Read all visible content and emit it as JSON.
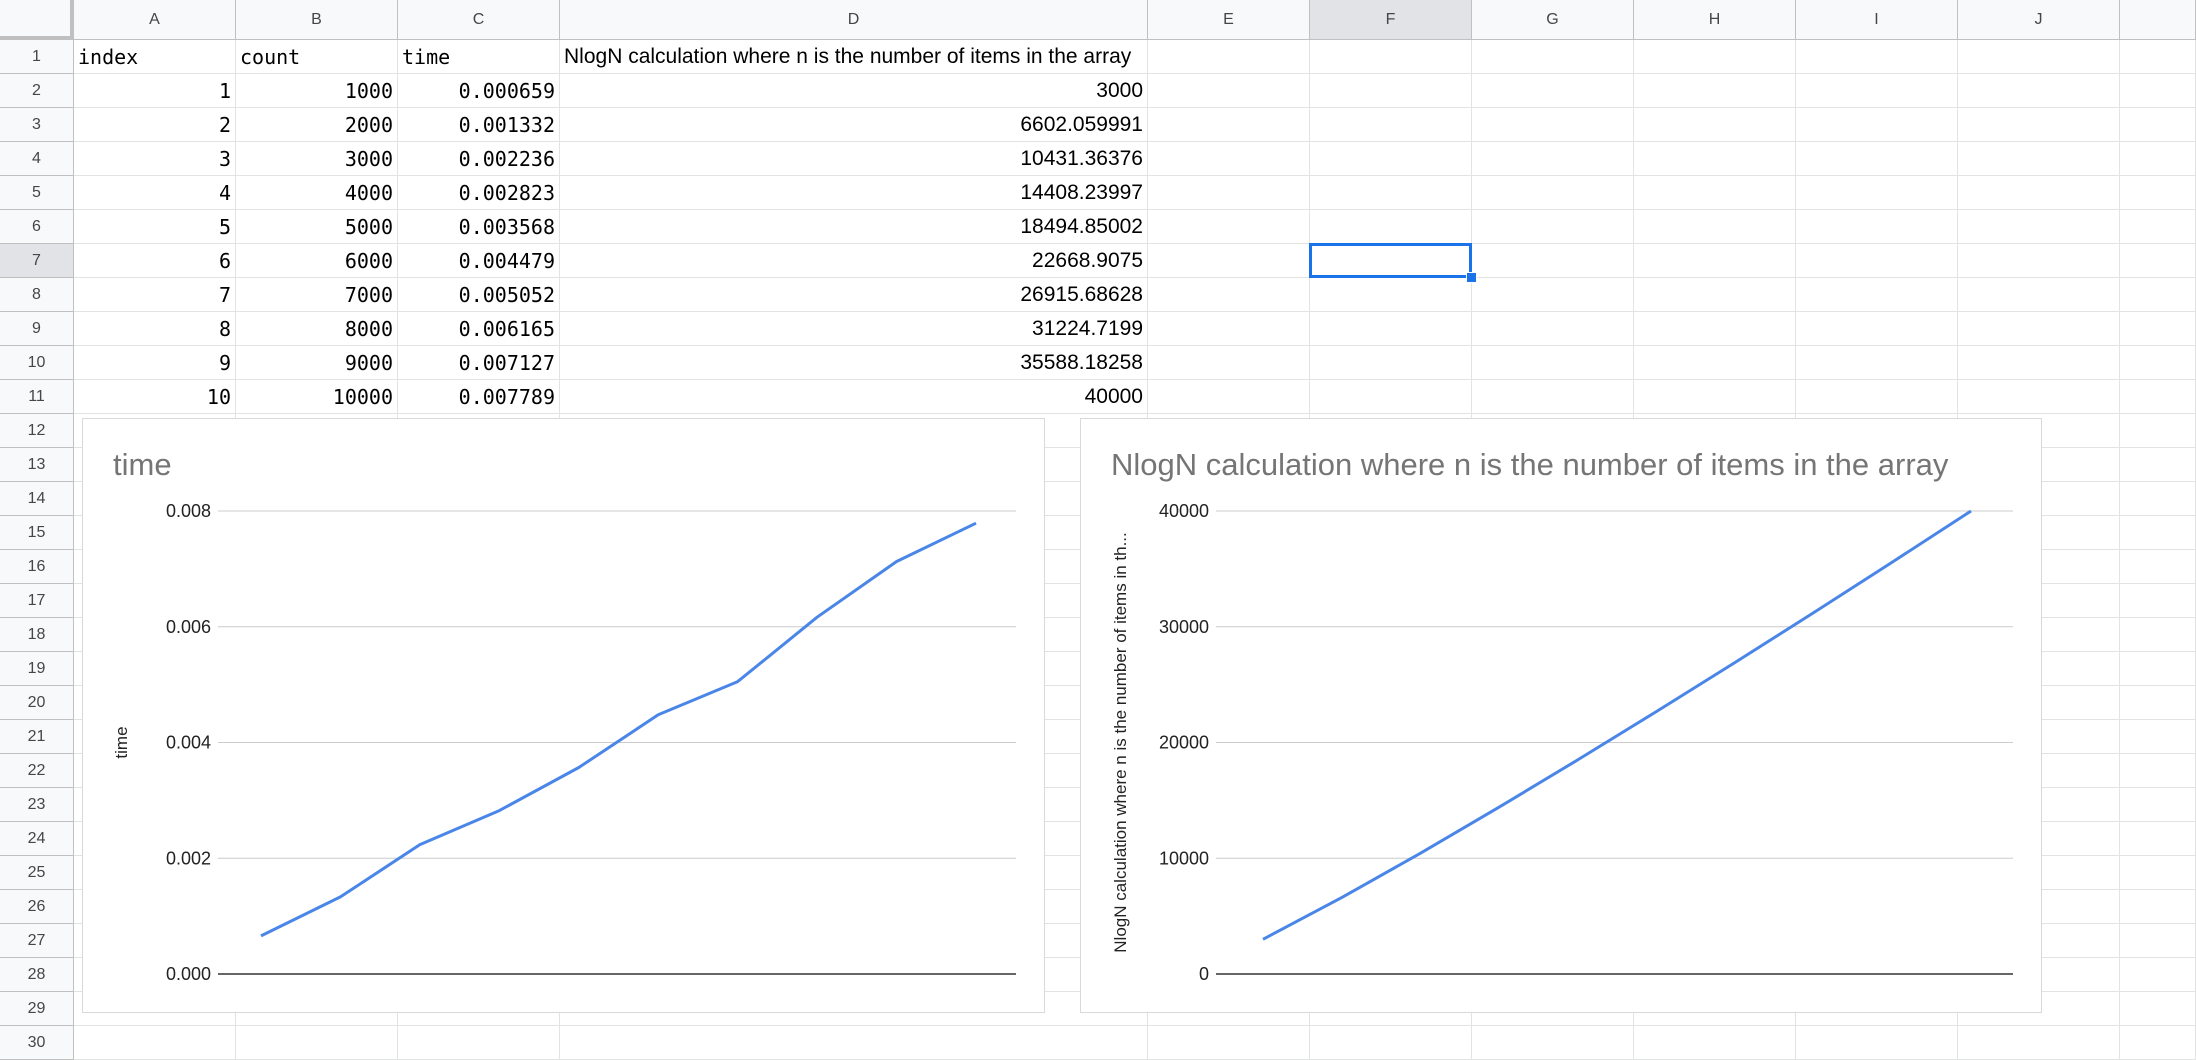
{
  "sheet": {
    "columns": [
      "A",
      "B",
      "C",
      "D",
      "E",
      "F",
      "G",
      "H",
      "I",
      "J"
    ],
    "rows": [
      "1",
      "2",
      "3",
      "4",
      "5",
      "6",
      "7",
      "8",
      "9",
      "10",
      "11",
      "12",
      "13",
      "14",
      "15",
      "16",
      "17",
      "18",
      "19",
      "20",
      "21",
      "22",
      "23",
      "24",
      "25",
      "26",
      "27",
      "28",
      "29",
      "30"
    ],
    "selected_column": "F",
    "selected_row": "7",
    "active_cell": "F7",
    "header_row": [
      "index",
      "count",
      "time",
      "NlogN calculation where n is the number of items in the array"
    ],
    "data_rows": [
      [
        "1",
        "1000",
        "0.000659",
        "3000"
      ],
      [
        "2",
        "2000",
        "0.001332",
        "6602.059991"
      ],
      [
        "3",
        "3000",
        "0.002236",
        "10431.36376"
      ],
      [
        "4",
        "4000",
        "0.002823",
        "14408.23997"
      ],
      [
        "5",
        "5000",
        "0.003568",
        "18494.85002"
      ],
      [
        "6",
        "6000",
        "0.004479",
        "22668.9075"
      ],
      [
        "7",
        "7000",
        "0.005052",
        "26915.68628"
      ],
      [
        "8",
        "8000",
        "0.006165",
        "31224.7199"
      ],
      [
        "9",
        "9000",
        "0.007127",
        "35588.18258"
      ],
      [
        "10",
        "10000",
        "0.007789",
        "40000"
      ]
    ]
  },
  "chart_data": [
    {
      "type": "line",
      "title": "time",
      "xlabel": "",
      "ylabel": "time",
      "ylim": [
        0,
        0.008
      ],
      "y_ticks": [
        "0.008",
        "0.006",
        "0.004",
        "0.002",
        "0.000"
      ],
      "grid": true,
      "legend": "none",
      "color": "#4a86e8",
      "series": [
        {
          "values": [
            0.000659,
            0.001332,
            0.002236,
            0.002823,
            0.003568,
            0.004479,
            0.005052,
            0.006165,
            0.007127,
            0.007789
          ]
        }
      ]
    },
    {
      "type": "line",
      "title": "NlogN calculation where n is the number of items in the array",
      "xlabel": "",
      "ylabel": "NlogN calculation where n is the number of items in th...",
      "ylim": [
        0,
        40000
      ],
      "y_ticks": [
        "40000",
        "30000",
        "20000",
        "10000",
        "0"
      ],
      "grid": true,
      "legend": "none",
      "color": "#4a86e8",
      "series": [
        {
          "values": [
            3000,
            6602.059991,
            10431.36376,
            14408.23997,
            18494.85002,
            22668.9075,
            26915.68628,
            31224.7199,
            35588.18258,
            40000
          ]
        }
      ]
    }
  ]
}
